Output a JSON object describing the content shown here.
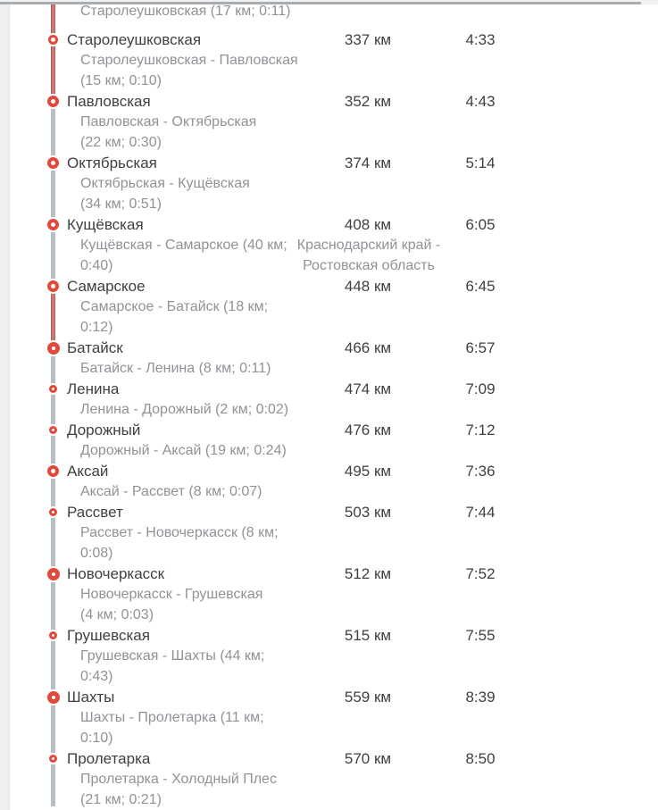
{
  "colors": {
    "marker_red": "#e2493b",
    "rail_red": "#cb7b77",
    "rail_gray": "#b7bec4",
    "station_text": "#404040",
    "muted_text": "#8f9397",
    "left_strip": "#edeff0",
    "top_divider": "#a9adb0"
  },
  "partial_previous": {
    "visible_description_line": "Старолеушковская (17 км; 0:11)"
  },
  "timeline": {
    "line_above_first": "red",
    "line_below_last": "gray"
  },
  "entries": [
    {
      "name": "Старолеушковская",
      "distance": "337 км",
      "time": "4:33",
      "marker": "small",
      "line_to_next": "red",
      "desc_lines": [
        "Старолеушковская - Павловская",
        "(15 км; 0:10)"
      ]
    },
    {
      "name": "Павловская",
      "distance": "352 км",
      "time": "4:43",
      "marker": "medium",
      "line_to_next": "gray",
      "desc_lines": [
        "Павловская - Октябрьская",
        "(22 км; 0:30)"
      ]
    },
    {
      "name": "Октябрьская",
      "distance": "374 км",
      "time": "5:14",
      "marker": "medium",
      "line_to_next": "gray",
      "desc_lines": [
        "Октябрьская - Кущёвская",
        "(34 км; 0:51)"
      ]
    },
    {
      "name": "Кущёвская",
      "distance": "408 км",
      "time": "6:05",
      "marker": "medium",
      "line_to_next": "gray",
      "desc_lines": [
        "Кущёвская - Самарское (40 км;",
        "0:40)"
      ],
      "region_lines": [
        "Краснодарский край -",
        "Ростовская область"
      ]
    },
    {
      "name": "Самарское",
      "distance": "448 км",
      "time": "6:45",
      "marker": "medium",
      "line_to_next": "red",
      "desc_lines": [
        "Самарское - Батайск (18 км;",
        "0:12)"
      ]
    },
    {
      "name": "Батайск",
      "distance": "466 км",
      "time": "6:57",
      "marker": "large",
      "line_to_next": "gray",
      "desc_lines": [
        "Батайск - Ленина (8 км; 0:11)"
      ]
    },
    {
      "name": "Ленина",
      "distance": "474 км",
      "time": "7:09",
      "marker": "xsmall",
      "line_to_next": "gray",
      "desc_lines": [
        "Ленина - Дорожный (2 км; 0:02)"
      ]
    },
    {
      "name": "Дорожный",
      "distance": "476 км",
      "time": "7:12",
      "marker": "xsmall",
      "line_to_next": "gray",
      "desc_lines": [
        "Дорожный - Аксай (19 км; 0:24)"
      ]
    },
    {
      "name": "Аксай",
      "distance": "495 км",
      "time": "7:36",
      "marker": "medium",
      "line_to_next": "gray",
      "desc_lines": [
        "Аксай - Рассвет (8 км; 0:07)"
      ]
    },
    {
      "name": "Рассвет",
      "distance": "503 км",
      "time": "7:44",
      "marker": "xsmall",
      "line_to_next": "gray",
      "desc_lines": [
        "Рассвет - Новочеркасск (8 км;",
        "0:08)"
      ]
    },
    {
      "name": "Новочеркасск",
      "distance": "512 км",
      "time": "7:52",
      "marker": "large",
      "line_to_next": "gray",
      "desc_lines": [
        "Новочеркасск - Грушевская",
        "(4 км; 0:03)"
      ]
    },
    {
      "name": "Грушевская",
      "distance": "515 км",
      "time": "7:55",
      "marker": "xsmall",
      "line_to_next": "gray",
      "desc_lines": [
        "Грушевская - Шахты (44 км;",
        "0:43)"
      ]
    },
    {
      "name": "Шахты",
      "distance": "559 км",
      "time": "8:39",
      "marker": "large",
      "line_to_next": "gray",
      "desc_lines": [
        "Шахты - Пролетарка (11 км;",
        "0:10)"
      ]
    },
    {
      "name": "Пролетарка",
      "distance": "570 км",
      "time": "8:50",
      "marker": "xsmall",
      "line_to_next": "gray",
      "desc_lines": [
        "Пролетарка - Холодный Плес",
        "(21 км; 0:21)"
      ]
    }
  ]
}
